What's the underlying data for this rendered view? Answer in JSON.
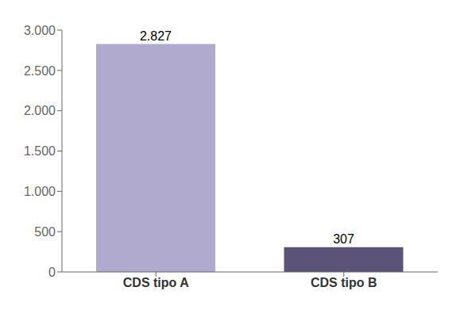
{
  "chart_data": {
    "type": "bar",
    "categories": [
      "CDS tipo A",
      "CDS tipo B"
    ],
    "values": [
      2827,
      307
    ],
    "value_labels": [
      "2.827",
      "307"
    ],
    "colors": [
      "#b0aacf",
      "#5c5478"
    ],
    "ylim": [
      0,
      3000
    ],
    "yticks": [
      0,
      500,
      {
        "value": 1000,
        "label": "1.000"
      },
      {
        "value": 1500,
        "label": "1.500"
      },
      {
        "value": 2000,
        "label": "2.000"
      },
      {
        "value": 2500,
        "label": "2.500"
      },
      {
        "value": 3000,
        "label": "3.000"
      }
    ],
    "grid": false,
    "data_labels": true
  }
}
